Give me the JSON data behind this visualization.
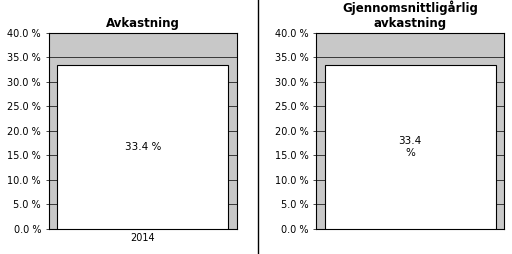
{
  "chart1_title": "Avkastning",
  "chart2_title": "Gjennomsnittligårlig\navkastning",
  "categories1": [
    "2014"
  ],
  "categories2": [
    " "
  ],
  "values": [
    33.4
  ],
  "bar_color": "#ffffff",
  "bar_edgecolor": "#000000",
  "plot_bg_color": "#c8c8c8",
  "fig_bg_color": "#ffffff",
  "ylim": [
    0,
    40
  ],
  "yticks": [
    0.0,
    5.0,
    10.0,
    15.0,
    20.0,
    25.0,
    30.0,
    35.0,
    40.0
  ],
  "bar_label1": "33.4 %",
  "bar_label2": "33.4\n%",
  "title_fontsize": 8.5,
  "tick_fontsize": 7,
  "label_fontsize": 7.5,
  "bar_width": 0.35,
  "grid_color": "#000000",
  "grid_linewidth": 0.5,
  "spine_linewidth": 0.8
}
